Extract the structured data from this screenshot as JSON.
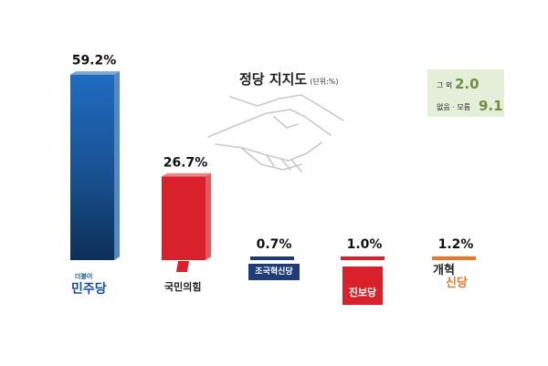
{
  "chart_data": {
    "type": "bar",
    "title": "정당 지지도",
    "unit": "(단위:%)",
    "categories": [
      "더불어민주당",
      "국민의힘",
      "조국혁신당",
      "진보당",
      "개혁신당"
    ],
    "values": [
      59.2,
      26.7,
      0.7,
      1.0,
      1.2
    ],
    "value_labels": [
      "59.2%",
      "26.7%",
      "0.7%",
      "1.0%",
      "1.2%"
    ],
    "colors": [
      "#1a5fa8",
      "#d8212b",
      "#1f3b7a",
      "#d8212b",
      "#e8792a"
    ],
    "ylim": [
      0,
      60
    ],
    "grid": false,
    "legend": "none",
    "others": [
      {
        "label": "그 외",
        "value": "2.0"
      },
      {
        "label": "없음 · 모름",
        "value": "9.1"
      }
    ]
  },
  "party_logos": [
    {
      "small": "더불어",
      "main": "민주당"
    },
    {
      "main": "국민의힘"
    },
    {
      "main": "조국혁신당"
    },
    {
      "main": "진보당"
    },
    {
      "line1": "개혁",
      "line2": "신당"
    }
  ]
}
